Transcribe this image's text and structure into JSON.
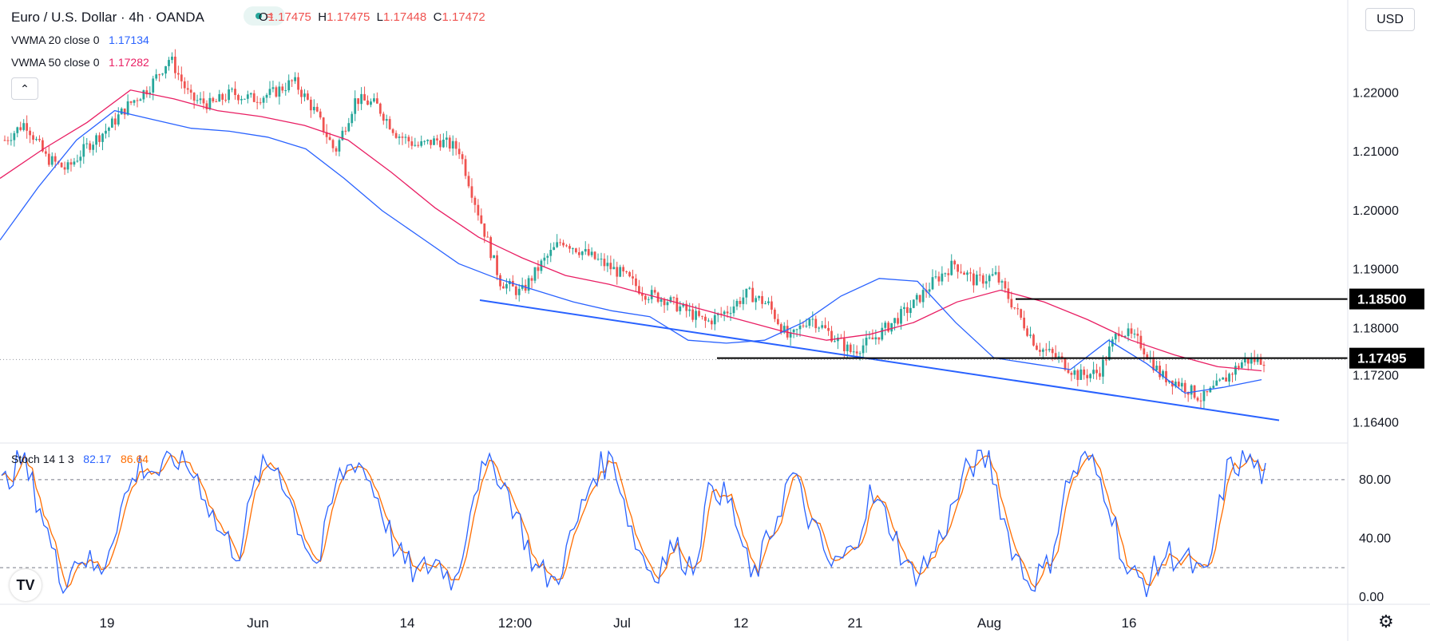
{
  "header": {
    "symbol_title": "Euro / U.S. Dollar · 4h · OANDA",
    "ohlc": [
      {
        "k": "O",
        "v": "1.17475"
      },
      {
        "k": "H",
        "v": "1.17475"
      },
      {
        "k": "L",
        "v": "1.17448"
      },
      {
        "k": "C",
        "v": "1.17472"
      }
    ],
    "wave_glyph": "≈"
  },
  "indicators": {
    "vwma20_label": "VWMA 20 close 0",
    "vwma20_value": "1.17134",
    "vwma50_label": "VWMA 50 close 0",
    "vwma50_value": "1.17282",
    "stoch_label": "Stoch 14 1 3",
    "stoch_k_value": "82.17",
    "stoch_d_value": "86.64"
  },
  "currency_button": "USD",
  "collapse_glyph": "⌃",
  "logo_text": "TV",
  "settings_glyph": "⚙",
  "colors": {
    "up": "#26a69a",
    "down": "#ef5350",
    "vwma20": "#2962ff",
    "vwma50": "#e91e63",
    "stoch_k": "#2962ff",
    "stoch_d": "#ff6d00",
    "trendline": "#2962ff",
    "level_line": "#000000"
  },
  "chart_data": {
    "type": "candlestick",
    "title": "Euro / U.S. Dollar 4h OANDA",
    "price_axis": {
      "range": [
        1.1608,
        1.2358
      ],
      "ticks": [
        1.164,
        1.172,
        1.18,
        1.19,
        1.2,
        1.21,
        1.22
      ],
      "tick_labels": [
        "1.16400",
        "1.17200",
        "1.18000",
        "1.19000",
        "1.20000",
        "1.21000",
        "1.22000"
      ]
    },
    "time_axis": {
      "labels": [
        "19",
        "Jun",
        "14",
        "12:00",
        "Jul",
        "12",
        "21",
        "Aug",
        "16"
      ]
    },
    "price_path": [
      1.212,
      1.215,
      1.209,
      1.207,
      1.211,
      1.214,
      1.218,
      1.221,
      1.226,
      1.219,
      1.218,
      1.22,
      1.219,
      1.22,
      1.222,
      1.217,
      1.21,
      1.219,
      1.218,
      1.213,
      1.211,
      1.212,
      1.2105,
      1.199,
      1.188,
      1.186,
      1.191,
      1.195,
      1.193,
      1.191,
      1.189,
      1.186,
      1.185,
      1.183,
      1.181,
      1.183,
      1.186,
      1.184,
      1.178,
      1.182,
      1.179,
      1.176,
      1.178,
      1.181,
      1.184,
      1.188,
      1.191,
      1.188,
      1.189,
      1.183,
      1.177,
      1.175,
      1.172,
      1.1725,
      1.18,
      1.1775,
      1.172,
      1.1705,
      1.168,
      1.171,
      1.1745,
      1.1747
    ],
    "vwma20": [
      1.195,
      1.204,
      1.212,
      1.217,
      1.2155,
      1.214,
      1.2135,
      1.2125,
      1.2105,
      1.2055,
      1.2,
      1.1955,
      1.191,
      1.1885,
      1.1865,
      1.1845,
      1.183,
      1.182,
      1.178,
      1.1775,
      1.178,
      1.181,
      1.1855,
      1.1885,
      1.188,
      1.181,
      1.175,
      1.174,
      1.173,
      1.178,
      1.174,
      1.169,
      1.17,
      1.1713
    ],
    "vwma50": [
      1.2055,
      1.2105,
      1.215,
      1.2205,
      1.219,
      1.217,
      1.216,
      1.2145,
      1.212,
      1.2065,
      1.2005,
      1.1955,
      1.192,
      1.189,
      1.1875,
      1.1855,
      1.1835,
      1.1815,
      1.1795,
      1.178,
      1.179,
      1.181,
      1.1845,
      1.1865,
      1.1845,
      1.1815,
      1.178,
      1.1755,
      1.1735,
      1.1728
    ],
    "levels": [
      {
        "label": "1.18500",
        "value": 1.185
      },
      {
        "label": "1.17495",
        "value": 1.17495
      }
    ],
    "trendline": {
      "from_price": 1.1848,
      "to_price": 1.1644
    },
    "stochastic": {
      "range": [
        -5,
        105
      ],
      "ticks": [
        0,
        40,
        80
      ],
      "tick_labels": [
        "0.00",
        "40.00",
        "80.00"
      ],
      "overbought": 80,
      "oversold": 20,
      "k": [
        75,
        95,
        60,
        10,
        30,
        15,
        60,
        90,
        85,
        95,
        80,
        45,
        30,
        85,
        90,
        50,
        20,
        80,
        95,
        70,
        30,
        15,
        25,
        10,
        80,
        90,
        60,
        20,
        10,
        45,
        85,
        95,
        40,
        15,
        35,
        20,
        80,
        60,
        10,
        45,
        85,
        50,
        20,
        30,
        70,
        50,
        15,
        25,
        55,
        90,
        95,
        40,
        10,
        20,
        80,
        95,
        70,
        15,
        10,
        30,
        25,
        10,
        85,
        95,
        82
      ]
    }
  }
}
